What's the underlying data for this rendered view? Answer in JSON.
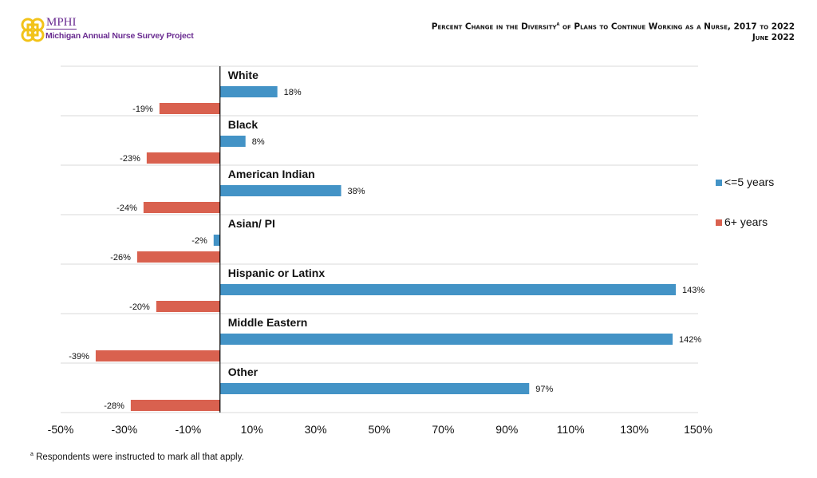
{
  "logo": {
    "name": "MPHI",
    "subtitle": "Michigan Annual Nurse Survey Project"
  },
  "header": {
    "title": "Percent Change in the Diversity",
    "title_sup": "a",
    "title_rest": " of Plans to Continue Working as a Nurse, 2017 to 2022",
    "date": "June 2022"
  },
  "footnote": {
    "marker": "a",
    "text": " Respondents were instructed to mark all that apply."
  },
  "colors": {
    "series1": "#4393c6",
    "series2": "#d9614f"
  },
  "chart_data": {
    "type": "bar",
    "orientation": "horizontal",
    "categories": [
      "White",
      "Black",
      "American Indian",
      "Asian/ PI",
      "Hispanic or Latinx",
      "Middle Eastern",
      "Other"
    ],
    "series": [
      {
        "name": "<=5 years",
        "values": [
          18,
          8,
          38,
          -2,
          143,
          142,
          97
        ]
      },
      {
        "name": "6+ years",
        "values": [
          -19,
          -23,
          -24,
          -26,
          -20,
          -39,
          -28
        ]
      }
    ],
    "xlim": [
      -50,
      150
    ],
    "xticks": [
      "-50%",
      "-30%",
      "-10%",
      "10%",
      "30%",
      "50%",
      "70%",
      "90%",
      "110%",
      "130%",
      "150%"
    ],
    "xtick_values": [
      -50,
      -30,
      -10,
      10,
      30,
      50,
      70,
      90,
      110,
      130,
      150
    ],
    "value_suffix": "%",
    "grid": "horizontal",
    "legend": "right"
  }
}
